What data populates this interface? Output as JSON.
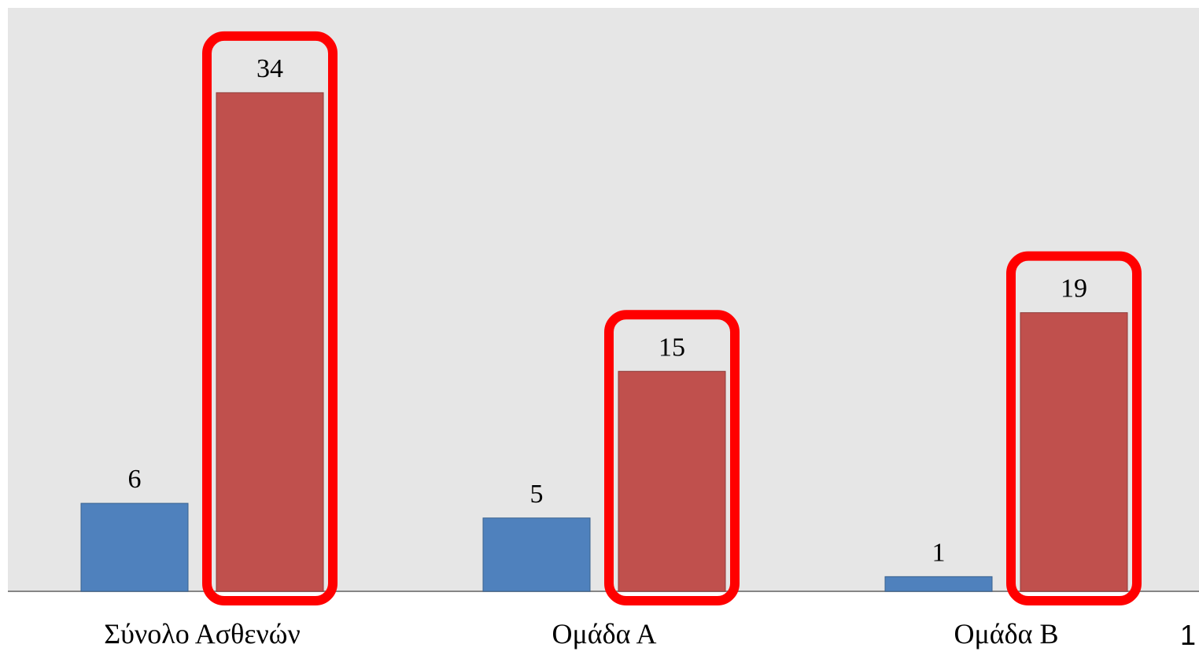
{
  "chart_data": {
    "type": "bar",
    "categories": [
      "Σύνολο Ασθενών",
      "Ομάδα Α",
      "Ομάδα Β"
    ],
    "series": [
      {
        "values": [
          6,
          5,
          1
        ],
        "color": "#4F81BD"
      },
      {
        "values": [
          34,
          15,
          19
        ],
        "color": "#C0504D",
        "highlighted": true
      }
    ],
    "ylim": [
      0,
      36
    ],
    "grid": false,
    "legend": "none",
    "background_color": "#E6E6E6",
    "highlight_color": "#FF0000"
  },
  "slide_number": "1"
}
